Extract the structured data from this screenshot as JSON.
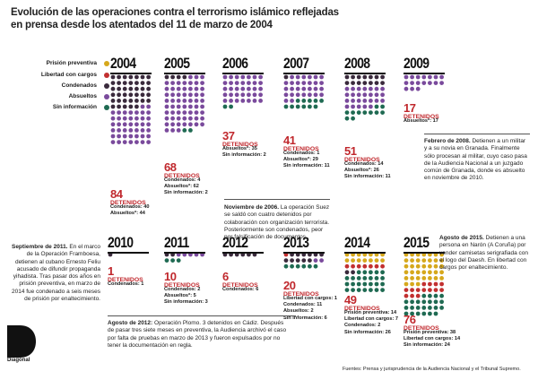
{
  "title": "Evolución de las operaciones contra el terrorismo islámico reflejadas en prensa desde los atentados del 11 de marzo de 2004",
  "legend": [
    {
      "label": "Prisión preventiva",
      "color": "#d6a81c"
    },
    {
      "label": "Libertad con cargos",
      "color": "#c23030"
    },
    {
      "label": "Condenados",
      "color": "#3a2a3c"
    },
    {
      "label": "Absueltos",
      "color": "#7a4a9c"
    },
    {
      "label": "Sin información",
      "color": "#1f6a52"
    }
  ],
  "detained_label": "DETENIDOS",
  "chart_data": {
    "type": "dot-grid",
    "title": "Evolución de las operaciones contra el terrorismo islámico reflejadas en prensa desde los atentados del 11 de marzo de 2004",
    "categories": [
      "Prisión preventiva",
      "Libertad con cargos",
      "Condenados",
      "Absueltos",
      "Sin información"
    ],
    "years": [
      {
        "year": "2004",
        "total": "84",
        "lines": [
          {
            "k": "Condenados:",
            "v": "40"
          },
          {
            "k": "Absueltos*:",
            "v": "44"
          }
        ],
        "counts": {
          "Prisión preventiva": 0,
          "Libertad con cargos": 0,
          "Condenados": 40,
          "Absueltos": 44,
          "Sin información": 0
        }
      },
      {
        "year": "2005",
        "total": "68",
        "lines": [
          {
            "k": "Condenados:",
            "v": "4"
          },
          {
            "k": "Absueltos*:",
            "v": "62"
          },
          {
            "k": "Sin información:",
            "v": "2"
          }
        ],
        "counts": {
          "Prisión preventiva": 0,
          "Libertad con cargos": 0,
          "Condenados": 4,
          "Absueltos": 62,
          "Sin información": 2
        }
      },
      {
        "year": "2006",
        "total": "37",
        "lines": [
          {
            "k": "Absueltos*:",
            "v": "35"
          },
          {
            "k": "Sin información:",
            "v": "2"
          }
        ],
        "counts": {
          "Prisión preventiva": 0,
          "Libertad con cargos": 0,
          "Condenados": 0,
          "Absueltos": 35,
          "Sin información": 2
        }
      },
      {
        "year": "2007",
        "total": "41",
        "lines": [
          {
            "k": "Condenados:",
            "v": "1"
          },
          {
            "k": "Absueltos*:",
            "v": "29"
          },
          {
            "k": "Sin información:",
            "v": "11"
          }
        ],
        "counts": {
          "Prisión preventiva": 0,
          "Libertad con cargos": 0,
          "Condenados": 1,
          "Absueltos": 29,
          "Sin información": 11
        }
      },
      {
        "year": "2008",
        "total": "51",
        "lines": [
          {
            "k": "Condenados:",
            "v": "14"
          },
          {
            "k": "Absueltos*:",
            "v": "26"
          },
          {
            "k": "Sin información:",
            "v": "11"
          }
        ],
        "counts": {
          "Prisión preventiva": 0,
          "Libertad con cargos": 0,
          "Condenados": 14,
          "Absueltos": 26,
          "Sin información": 11
        }
      },
      {
        "year": "2009",
        "total": "17",
        "lines": [
          {
            "k": "Absueltos*:",
            "v": "17"
          }
        ],
        "counts": {
          "Prisión preventiva": 0,
          "Libertad con cargos": 0,
          "Condenados": 0,
          "Absueltos": 17,
          "Sin información": 0
        }
      },
      {
        "year": "2010",
        "total": "1",
        "lines": [
          {
            "k": "Condenados:",
            "v": "1"
          }
        ],
        "counts": {
          "Prisión preventiva": 0,
          "Libertad con cargos": 0,
          "Condenados": 1,
          "Absueltos": 0,
          "Sin información": 0
        }
      },
      {
        "year": "2011",
        "total": "10",
        "lines": [
          {
            "k": "Condenados:",
            "v": "2"
          },
          {
            "k": "Absueltos*:",
            "v": "5"
          },
          {
            "k": "Sin información:",
            "v": "3"
          }
        ],
        "counts": {
          "Prisión preventiva": 0,
          "Libertad con cargos": 0,
          "Condenados": 2,
          "Absueltos": 5,
          "Sin información": 3
        }
      },
      {
        "year": "2012",
        "total": "6",
        "lines": [
          {
            "k": "Condenados:",
            "v": "6"
          }
        ],
        "counts": {
          "Prisión preventiva": 0,
          "Libertad con cargos": 0,
          "Condenados": 6,
          "Absueltos": 0,
          "Sin información": 0
        }
      },
      {
        "year": "2013",
        "total": "20",
        "lines": [
          {
            "k": "Libertad con cargos:",
            "v": "1"
          },
          {
            "k": "Condenados:",
            "v": "11"
          },
          {
            "k": "Absueltos:",
            "v": "2"
          },
          {
            "k": "Sin información:",
            "v": "6"
          }
        ],
        "counts": {
          "Prisión preventiva": 0,
          "Libertad con cargos": 1,
          "Condenados": 11,
          "Absueltos": 2,
          "Sin información": 6
        }
      },
      {
        "year": "2014",
        "total": "49",
        "lines": [
          {
            "k": "Prisión preventiva:",
            "v": "14"
          },
          {
            "k": "Libertad con cargos:",
            "v": "7"
          },
          {
            "k": "Condenados:",
            "v": "2"
          },
          {
            "k": "Sin información:",
            "v": "26"
          }
        ],
        "counts": {
          "Prisión preventiva": 14,
          "Libertad con cargos": 7,
          "Condenados": 2,
          "Absueltos": 0,
          "Sin información": 26
        }
      },
      {
        "year": "2015",
        "total": "76",
        "lines": [
          {
            "k": "Prisión preventiva:",
            "v": "38"
          },
          {
            "k": "Libertad con cargos:",
            "v": "14"
          },
          {
            "k": "Sin información:",
            "v": "24"
          }
        ],
        "counts": {
          "Prisión preventiva": 38,
          "Libertad con cargos": 14,
          "Condenados": 0,
          "Absueltos": 0,
          "Sin información": 24
        }
      }
    ]
  },
  "notes": {
    "nov2006": {
      "head": "Noviembre de 2006.",
      "body": "La operación Suez se saldó con cuatro detenidos por colaboración con organización terrorista. Posteriormente son condenados, peor por falsificación de documentos."
    },
    "feb2008": {
      "head": "Febrero de 2008.",
      "body": "Detienen a un militar y a su novia en Granada. Finalmente sólo procesan al militar, cuyo caso pasa de la Audiencia Nacional a un juzgado común de Granada, donde es absuelto en noviembre de 2010."
    },
    "sep2011": {
      "head": "Septiembre de 2011.",
      "body": "En el marco de la Operación Framboesa, detienen al cubano Ernesto Feliu acusado de difundir propaganda yihadista. Tras pasar dos años en prisión preventiva, en marzo de 2014 fue condenado a seis meses de prisión por enaltecimiento."
    },
    "ago2012": {
      "head": "Agosto de 2012:",
      "body": "Operación Plomo. 3 detenidos en Cádiz. Después de pasar tres siete meses en preventiva, la Audiencia archivó el caso por falta de pruebas en marzo de 2013 y fueron expulsados por no tener la documentación en regla."
    },
    "ago2015": {
      "head": "Agosto de 2015.",
      "body": "Detienen a una persona en Narón (A Coruña) por vender camisetas serigrafiada con el logo del Daesh. En libertad con cargos por enaltecimiento."
    }
  },
  "logo_letter": "D",
  "logo_word": "Diagonal",
  "source": "Fuentes: Prensa y jurisprudencia de la Audiencia Nacional y el Tribunal Supremo."
}
